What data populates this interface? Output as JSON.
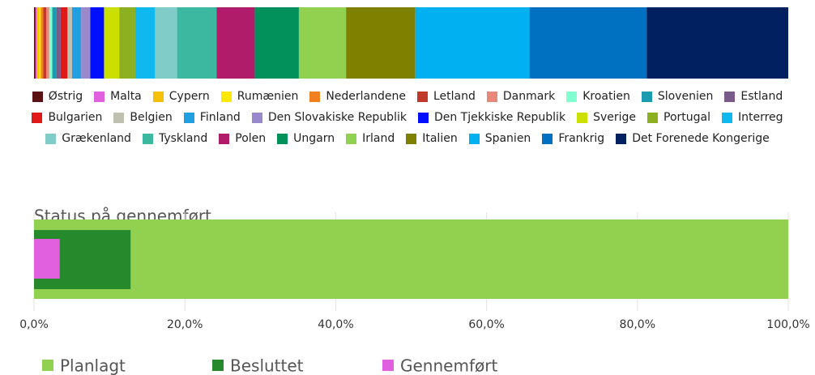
{
  "chart_data": [
    {
      "type": "bar",
      "stacked": true,
      "orientation": "horizontal",
      "series": [
        {
          "name": "Østrig",
          "color": "#5a1010",
          "values": [
            0.2
          ]
        },
        {
          "name": "Malta",
          "color": "#e060e0",
          "values": [
            0.2
          ]
        },
        {
          "name": "Cypern",
          "color": "#f5c000",
          "values": [
            0.3
          ]
        },
        {
          "name": "Rumænien",
          "color": "#ffe800",
          "values": [
            0.2
          ]
        },
        {
          "name": "Nederlandene",
          "color": "#f08020",
          "values": [
            0.3
          ]
        },
        {
          "name": "Letland",
          "color": "#c0392b",
          "values": [
            0.4
          ]
        },
        {
          "name": "Danmark",
          "color": "#e8887a",
          "values": [
            0.4
          ]
        },
        {
          "name": "Kroatien",
          "color": "#80ffd0",
          "values": [
            0.4
          ]
        },
        {
          "name": "Slovenien",
          "color": "#1a9cb0",
          "values": [
            0.5
          ]
        },
        {
          "name": "Estland",
          "color": "#7a5a8a",
          "values": [
            0.6
          ]
        },
        {
          "name": "Bulgarien",
          "color": "#e01818",
          "values": [
            0.9
          ]
        },
        {
          "name": "Belgien",
          "color": "#c0c0b0",
          "values": [
            0.6
          ]
        },
        {
          "name": "Finland",
          "color": "#20a0e0",
          "values": [
            1.2
          ]
        },
        {
          "name": "Den Slovakiske Republik",
          "color": "#9988cc",
          "values": [
            1.2
          ]
        },
        {
          "name": "Den Tjekkiske Republik",
          "color": "#0010ff",
          "values": [
            1.8
          ]
        },
        {
          "name": "Sverige",
          "color": "#cce000",
          "values": [
            2.0
          ]
        },
        {
          "name": "Portugal",
          "color": "#8cb020",
          "values": [
            2.1
          ]
        },
        {
          "name": "Interreg",
          "color": "#10b8f0",
          "values": [
            2.6
          ]
        },
        {
          "name": "Grækenland",
          "color": "#80ccc8",
          "values": [
            2.9
          ]
        },
        {
          "name": "Tyskland",
          "color": "#3cb8a0",
          "values": [
            5.2
          ]
        },
        {
          "name": "Polen",
          "color": "#b01c6a",
          "values": [
            5.0
          ]
        },
        {
          "name": "Ungarn",
          "color": "#00925a",
          "values": [
            5.8
          ]
        },
        {
          "name": "Irland",
          "color": "#92d050",
          "values": [
            6.2
          ]
        },
        {
          "name": "Italien",
          "color": "#808000",
          "values": [
            9.1
          ]
        },
        {
          "name": "Spanien",
          "color": "#00b0f0",
          "values": [
            15.0
          ]
        },
        {
          "name": "Frankrig",
          "color": "#0070c0",
          "values": [
            15.4
          ]
        },
        {
          "name": "Det Forenede Kongerige",
          "color": "#002060",
          "values": [
            18.6
          ]
        }
      ]
    },
    {
      "type": "bar",
      "stacked": false,
      "orientation": "horizontal",
      "title": "Status på gennemført",
      "xlim": [
        0,
        100
      ],
      "xticks": [
        {
          "value": 0,
          "label": "0,0%"
        },
        {
          "value": 20,
          "label": "20,0%"
        },
        {
          "value": 40,
          "label": "40,0%"
        },
        {
          "value": 60,
          "label": "60,0%"
        },
        {
          "value": 80,
          "label": "80,0%"
        },
        {
          "value": 100,
          "label": "100,0%"
        }
      ],
      "grid": true,
      "series": [
        {
          "name": "Planlagt",
          "color": "#92d050",
          "values": [
            100
          ]
        },
        {
          "name": "Besluttet",
          "color": "#268a2c",
          "values": [
            12.8
          ]
        },
        {
          "name": "Gennemført",
          "color": "#e060e0",
          "values": [
            3.4
          ]
        }
      ]
    }
  ]
}
